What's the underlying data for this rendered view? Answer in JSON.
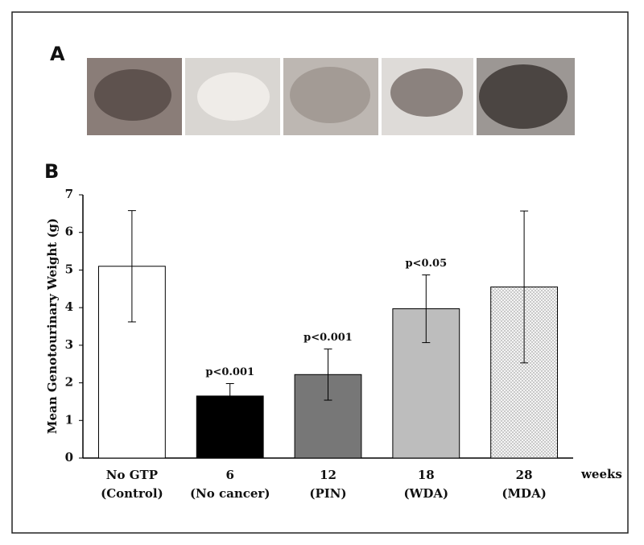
{
  "chart_data": {
    "type": "bar",
    "panel_labels": [
      "A",
      "B"
    ],
    "ylabel": "Mean Genotourinary Weight (g)",
    "xlabel": "weeks",
    "categories": [
      "No GTP",
      "6",
      "12",
      "18",
      "28"
    ],
    "category_notes": [
      "(Control)",
      "(No cancer)",
      "(PIN)",
      "(WDA)",
      "(MDA)"
    ],
    "values": [
      5.1,
      1.65,
      2.22,
      3.97,
      4.55
    ],
    "errors": [
      1.48,
      0.33,
      0.68,
      0.9,
      2.02
    ],
    "annotations": [
      null,
      "p<0.001",
      "p<0.001",
      "p<0.05",
      null
    ],
    "colors": [
      "#ffffff",
      "#000000",
      "#777777",
      "#bdbdbd",
      "#f4f4f4"
    ],
    "patterns": [
      null,
      null,
      null,
      null,
      "dots"
    ],
    "ylim": [
      0,
      7
    ],
    "yticks": [
      0,
      1,
      2,
      3,
      4,
      5,
      6,
      7
    ],
    "grid": false
  }
}
